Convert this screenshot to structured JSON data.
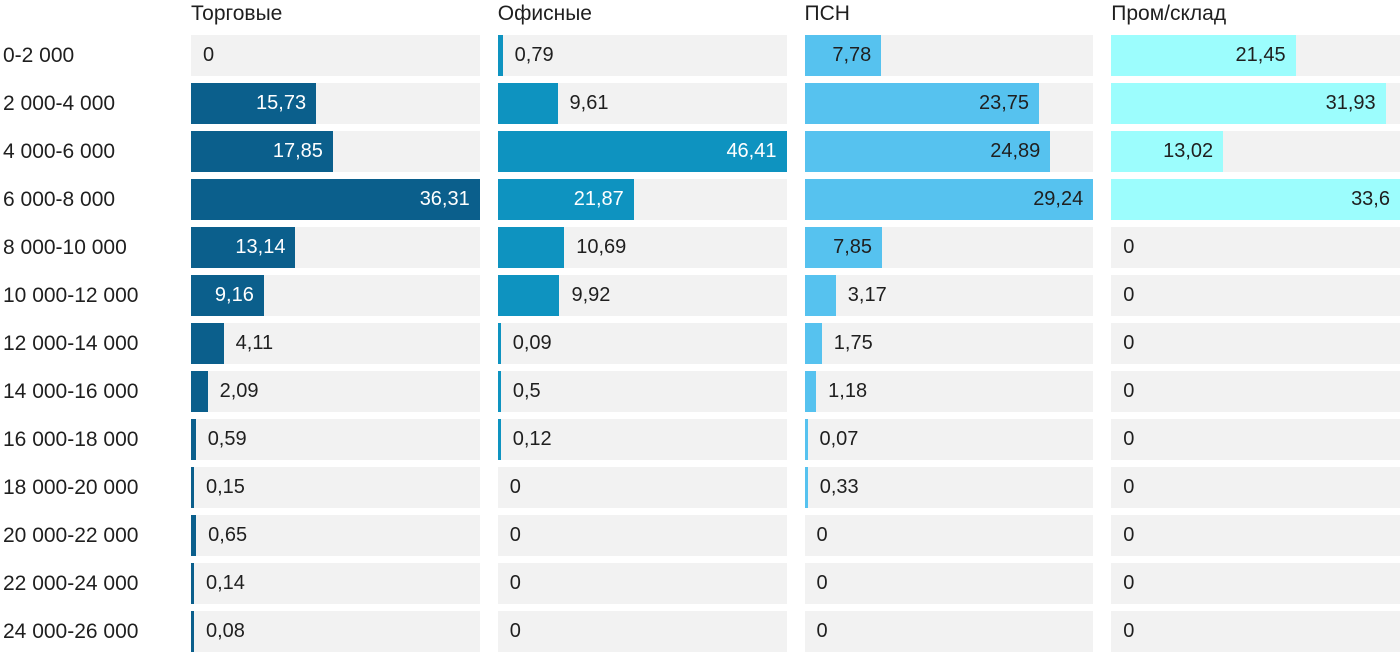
{
  "chart_data": {
    "type": "bar",
    "orientation": "horizontal",
    "title": "",
    "xlabel": "",
    "ylabel": "",
    "grid": false,
    "legend_position": "top-column-headers",
    "track_color": "#f2f2f2",
    "text_color": "#1f1f1f",
    "categories": [
      "0-2 000",
      "2 000-4 000",
      "4 000-6 000",
      "6 000-8 000",
      "8 000-10 000",
      "10 000-12 000",
      "12 000-14 000",
      "14 000-16 000",
      "16 000-18 000",
      "18 000-20 000",
      "20 000-22 000",
      "22 000-24 000",
      "24 000-26 000"
    ],
    "column_max": [
      36.31,
      46.41,
      29.24,
      33.6
    ],
    "series": [
      {
        "name": "Торговые",
        "color": "#0b5f8c",
        "inside_label_color": "#ffffff",
        "values": [
          0,
          15.73,
          17.85,
          36.31,
          13.14,
          9.16,
          4.11,
          2.09,
          0.59,
          0.15,
          0.65,
          0.14,
          0.08
        ],
        "labels": [
          "0",
          "15,73",
          "17,85",
          "36,31",
          "13,14",
          "9,16",
          "4,11",
          "2,09",
          "0,59",
          "0,15",
          "0,65",
          "0,14",
          "0,08"
        ]
      },
      {
        "name": "Офисные",
        "color": "#0e93c0",
        "inside_label_color": "#ffffff",
        "values": [
          0.79,
          9.61,
          46.41,
          21.87,
          10.69,
          9.92,
          0.09,
          0.5,
          0.12,
          0,
          0,
          0,
          0
        ],
        "labels": [
          "0,79",
          "9,61",
          "46,41",
          "21,87",
          "10,69",
          "9,92",
          "0,09",
          "0,5",
          "0,12",
          "0",
          "0",
          "0",
          "0"
        ]
      },
      {
        "name": "ПСН",
        "color": "#56c2ef",
        "inside_label_color": "#1f1f1f",
        "values": [
          7.78,
          23.75,
          24.89,
          29.24,
          7.85,
          3.17,
          1.75,
          1.18,
          0.07,
          0.33,
          0,
          0,
          0
        ],
        "labels": [
          "7,78",
          "23,75",
          "24,89",
          "29,24",
          "7,85",
          "3,17",
          "1,75",
          "1,18",
          "0,07",
          "0,33",
          "0",
          "0",
          "0"
        ]
      },
      {
        "name": "Пром/склад",
        "color": "#9cfdfd",
        "inside_label_color": "#1f1f1f",
        "values": [
          21.45,
          31.93,
          13.02,
          33.6,
          0,
          0,
          0,
          0,
          0,
          0,
          0,
          0,
          0
        ],
        "labels": [
          "21,45",
          "31,93",
          "13,02",
          "33,6",
          "0",
          "0",
          "0",
          "0",
          "0",
          "0",
          "0",
          "0",
          "0"
        ]
      }
    ]
  }
}
